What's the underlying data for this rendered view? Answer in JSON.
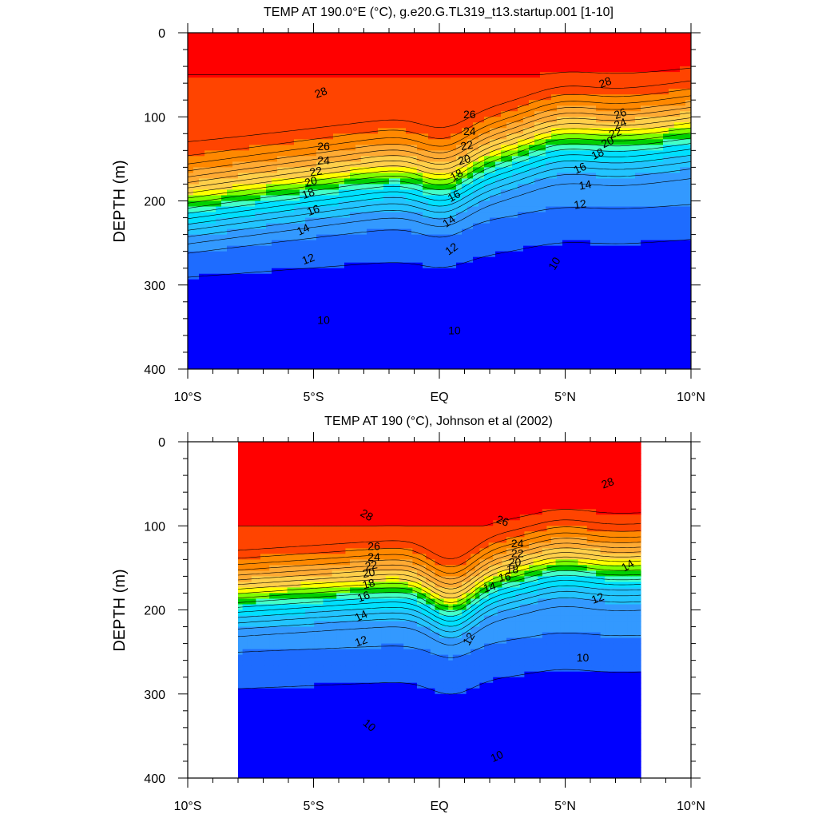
{
  "chart_data": [
    {
      "type": "contour",
      "title": "TEMP AT 190.0°E (°C), g.e20.G.TL319_t13.startup.001 [1-10]",
      "ylabel": "DEPTH (m)",
      "xlabel": "",
      "x_ticks": [
        "10°S",
        "5°S",
        "EQ",
        "5°N",
        "10°N"
      ],
      "x_range": [
        -10,
        10
      ],
      "y_ticks": [
        "0",
        "100",
        "200",
        "300",
        "400"
      ],
      "y_range": [
        0,
        400
      ],
      "data_x_range": [
        -10,
        10
      ],
      "contour_interval": 1,
      "contour_labels": [
        {
          "text": "28",
          "x": -4.7,
          "y": 72,
          "rot": -20
        },
        {
          "text": "28",
          "x": 6.6,
          "y": 60,
          "rot": -20
        },
        {
          "text": "26",
          "x": 1.2,
          "y": 98,
          "rot": 0
        },
        {
          "text": "24",
          "x": 1.2,
          "y": 118,
          "rot": 0
        },
        {
          "text": "22",
          "x": 1.1,
          "y": 135,
          "rot": -10
        },
        {
          "text": "20",
          "x": 1.0,
          "y": 152,
          "rot": -15
        },
        {
          "text": "18",
          "x": 0.7,
          "y": 170,
          "rot": -30
        },
        {
          "text": "16",
          "x": 0.6,
          "y": 195,
          "rot": -30
        },
        {
          "text": "14",
          "x": 0.4,
          "y": 225,
          "rot": -35
        },
        {
          "text": "12",
          "x": 0.5,
          "y": 258,
          "rot": -35
        },
        {
          "text": "10",
          "x": -4.6,
          "y": 343,
          "rot": 0
        },
        {
          "text": "10",
          "x": 0.6,
          "y": 355,
          "rot": 0
        },
        {
          "text": "10",
          "x": 4.6,
          "y": 275,
          "rot": -60
        },
        {
          "text": "26",
          "x": -4.6,
          "y": 136,
          "rot": 0
        },
        {
          "text": "24",
          "x": -4.6,
          "y": 153,
          "rot": 0
        },
        {
          "text": "22",
          "x": -4.9,
          "y": 166,
          "rot": -10
        },
        {
          "text": "20",
          "x": -5.1,
          "y": 178,
          "rot": -15
        },
        {
          "text": "18",
          "x": -5.2,
          "y": 192,
          "rot": -20
        },
        {
          "text": "16",
          "x": -5.0,
          "y": 212,
          "rot": -20
        },
        {
          "text": "14",
          "x": -5.4,
          "y": 235,
          "rot": -25
        },
        {
          "text": "12",
          "x": -5.2,
          "y": 270,
          "rot": -20
        },
        {
          "text": "26",
          "x": 7.2,
          "y": 97,
          "rot": -20
        },
        {
          "text": "24",
          "x": 7.2,
          "y": 109,
          "rot": -20
        },
        {
          "text": "22",
          "x": 7.0,
          "y": 120,
          "rot": -20
        },
        {
          "text": "20",
          "x": 6.7,
          "y": 131,
          "rot": -25
        },
        {
          "text": "18",
          "x": 6.3,
          "y": 145,
          "rot": -25
        },
        {
          "text": "16",
          "x": 5.6,
          "y": 162,
          "rot": -25
        },
        {
          "text": "14",
          "x": 5.8,
          "y": 182,
          "rot": -10
        },
        {
          "text": "12",
          "x": 5.6,
          "y": 205,
          "rot": -10
        }
      ]
    },
    {
      "type": "contour",
      "title": "TEMP AT 190 (°C), Johnson et al (2002)",
      "ylabel": "DEPTH (m)",
      "xlabel": "",
      "x_ticks": [
        "10°S",
        "5°S",
        "EQ",
        "5°N",
        "10°N"
      ],
      "x_range": [
        -10,
        10
      ],
      "y_ticks": [
        "0",
        "100",
        "200",
        "300",
        "400"
      ],
      "y_range": [
        0,
        400
      ],
      "data_x_range": [
        -8,
        8
      ],
      "contour_interval": 1,
      "contour_labels": [
        {
          "text": "28",
          "x": -2.9,
          "y": 88,
          "rot": 30
        },
        {
          "text": "28",
          "x": 6.7,
          "y": 50,
          "rot": -20
        },
        {
          "text": "26",
          "x": 2.5,
          "y": 95,
          "rot": 20
        },
        {
          "text": "26",
          "x": -2.6,
          "y": 125,
          "rot": 0
        },
        {
          "text": "24",
          "x": -2.6,
          "y": 138,
          "rot": 0
        },
        {
          "text": "22",
          "x": -2.7,
          "y": 148,
          "rot": -10
        },
        {
          "text": "20",
          "x": -2.8,
          "y": 157,
          "rot": -10
        },
        {
          "text": "18",
          "x": -2.8,
          "y": 170,
          "rot": -15
        },
        {
          "text": "16",
          "x": -3.0,
          "y": 185,
          "rot": -20
        },
        {
          "text": "14",
          "x": -3.1,
          "y": 208,
          "rot": -25
        },
        {
          "text": "12",
          "x": -3.1,
          "y": 238,
          "rot": -20
        },
        {
          "text": "24",
          "x": 3.1,
          "y": 122,
          "rot": 0
        },
        {
          "text": "22",
          "x": 3.1,
          "y": 134,
          "rot": 0
        },
        {
          "text": "20",
          "x": 3.0,
          "y": 144,
          "rot": 0
        },
        {
          "text": "18",
          "x": 2.9,
          "y": 153,
          "rot": 0
        },
        {
          "text": "16",
          "x": 2.6,
          "y": 162,
          "rot": -10
        },
        {
          "text": "14",
          "x": 2.0,
          "y": 174,
          "rot": -15
        },
        {
          "text": "12",
          "x": 1.2,
          "y": 235,
          "rot": -60
        },
        {
          "text": "14",
          "x": 7.5,
          "y": 148,
          "rot": -30
        },
        {
          "text": "12",
          "x": 6.3,
          "y": 187,
          "rot": -20
        },
        {
          "text": "10",
          "x": 5.7,
          "y": 258,
          "rot": 0
        },
        {
          "text": "10",
          "x": -2.8,
          "y": 338,
          "rot": 40
        },
        {
          "text": "10",
          "x": 2.3,
          "y": 375,
          "rot": -25
        }
      ]
    }
  ],
  "palette": {
    "levels": [
      10,
      12,
      14,
      16,
      18,
      20,
      22,
      24,
      26,
      28,
      29
    ],
    "colors": [
      "#0000ff",
      "#1e6cff",
      "#3399ff",
      "#22c4ff",
      "#00e0ff",
      "#44ffc8",
      "#00d000",
      "#7fff00",
      "#ffff00",
      "#ffcf4a",
      "#ffaa33",
      "#ff8800",
      "#ff4400",
      "#ff0000",
      "#dd0000"
    ]
  }
}
